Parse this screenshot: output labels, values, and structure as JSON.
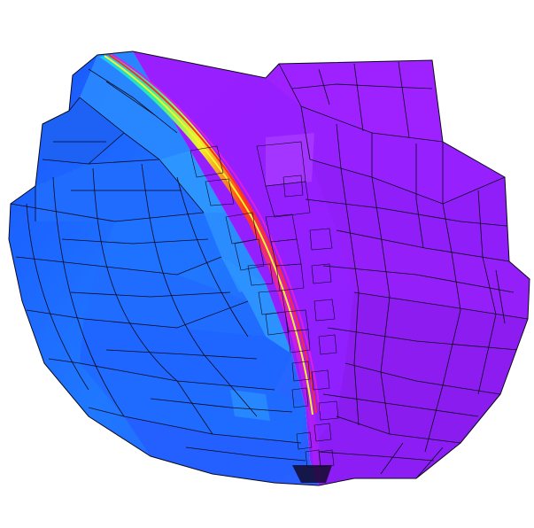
{
  "image": {
    "subject": "adaptive-refined-hexahedral-mesh-sphere",
    "colormap": [
      "#3a2bff",
      "#1f66ff",
      "#19a8ff",
      "#25e0c8",
      "#e6f02a",
      "#ff3a1e",
      "#d81bd8",
      "#a03bff",
      "#8c2bff"
    ],
    "colors": {
      "background": "#ffffff",
      "left_field": "#1f6bff",
      "left_field_light": "#2a90ff",
      "right_field": "#8f1fff",
      "right_field_light": "#a53bff",
      "mesh_lines": "#0a0a1a"
    }
  }
}
